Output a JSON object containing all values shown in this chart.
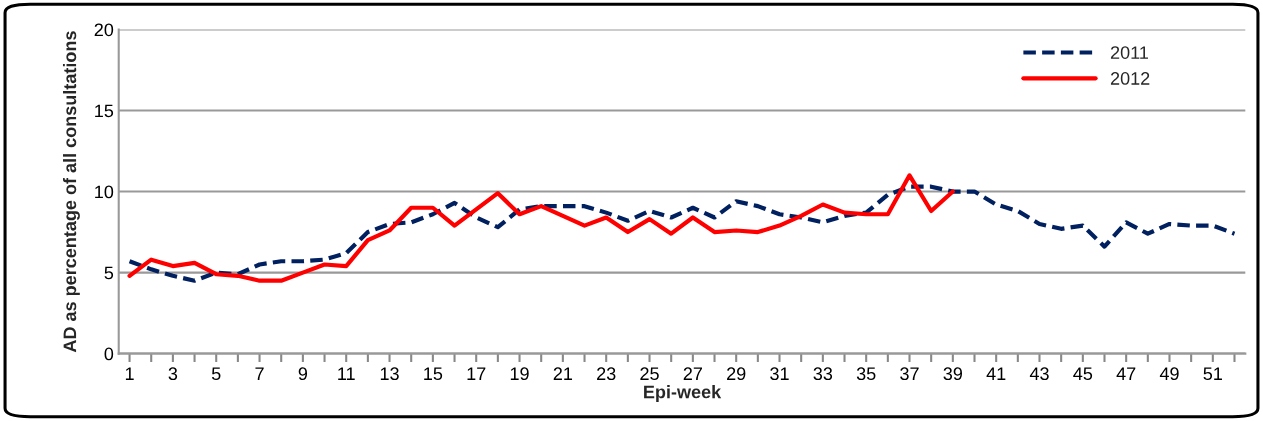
{
  "chart_data": {
    "type": "line",
    "xlabel": "Epi-week",
    "ylabel": "AD as percentage of all consultations",
    "x": [
      1,
      2,
      3,
      4,
      5,
      6,
      7,
      8,
      9,
      10,
      11,
      12,
      13,
      14,
      15,
      16,
      17,
      18,
      19,
      20,
      21,
      22,
      23,
      24,
      25,
      26,
      27,
      28,
      29,
      30,
      31,
      32,
      33,
      34,
      35,
      36,
      37,
      38,
      39,
      40,
      41,
      42,
      43,
      44,
      45,
      46,
      47,
      48,
      49,
      50,
      51,
      52
    ],
    "series": [
      {
        "name": "2011",
        "color": "#002060",
        "line_style": "dashed",
        "values": [
          5.7,
          5.2,
          4.8,
          4.5,
          5.0,
          4.9,
          5.5,
          5.7,
          5.7,
          5.8,
          6.2,
          7.5,
          8.0,
          8.1,
          8.6,
          9.3,
          8.4,
          7.8,
          8.9,
          9.1,
          9.1,
          9.1,
          8.7,
          8.2,
          8.8,
          8.4,
          9.0,
          8.4,
          9.4,
          9.1,
          8.6,
          8.4,
          8.1,
          8.5,
          8.7,
          9.8,
          10.3,
          10.3,
          10.0,
          10.0,
          9.2,
          8.8,
          8.0,
          7.7,
          7.9,
          6.6,
          8.1,
          7.4,
          8.0,
          7.9,
          7.9,
          7.4
        ]
      },
      {
        "name": "2012",
        "color": "#ff0000",
        "line_style": "solid",
        "values": [
          4.8,
          5.8,
          5.4,
          5.6,
          4.9,
          4.8,
          4.5,
          4.5,
          5.0,
          5.5,
          5.4,
          7.0,
          7.6,
          9.0,
          9.0,
          7.9,
          8.9,
          9.9,
          8.6,
          9.1,
          8.5,
          7.9,
          8.4,
          7.5,
          8.3,
          7.4,
          8.4,
          7.5,
          7.6,
          7.5,
          7.9,
          8.5,
          9.2,
          8.7,
          8.6,
          8.6,
          11.0,
          8.8,
          10.0,
          null,
          null,
          null,
          null,
          null,
          null,
          null,
          null,
          null,
          null,
          null,
          null,
          null
        ]
      }
    ],
    "xlim": [
      0.5,
      52.5
    ],
    "xticks": [
      1,
      {
        "value": 2,
        "label": null
      },
      3,
      {
        "value": 4,
        "label": null
      },
      5,
      {
        "value": 6,
        "label": null
      },
      7,
      {
        "value": 8,
        "label": null
      },
      9,
      {
        "value": 10,
        "label": null
      },
      11,
      {
        "value": 12,
        "label": null
      },
      13,
      {
        "value": 14,
        "label": null
      },
      15,
      {
        "value": 16,
        "label": null
      },
      17,
      {
        "value": 18,
        "label": null
      },
      19,
      {
        "value": 20,
        "label": null
      },
      21,
      {
        "value": 22,
        "label": null
      },
      23,
      {
        "value": 24,
        "label": null
      },
      25,
      {
        "value": 26,
        "label": null
      },
      27,
      {
        "value": 28,
        "label": null
      },
      29,
      {
        "value": 30,
        "label": null
      },
      31,
      {
        "value": 32,
        "label": null
      },
      33,
      {
        "value": 34,
        "label": null
      },
      35,
      {
        "value": 36,
        "label": null
      },
      37,
      {
        "value": 38,
        "label": null
      },
      39,
      {
        "value": 40,
        "label": null
      },
      41,
      {
        "value": 42,
        "label": null
      },
      43,
      {
        "value": 44,
        "label": null
      },
      45,
      {
        "value": 46,
        "label": null
      },
      47,
      {
        "value": 48,
        "label": null
      },
      49,
      {
        "value": 50,
        "label": null
      },
      51,
      {
        "value": 52,
        "label": null
      }
    ],
    "ylim": [
      0,
      20
    ],
    "yticks": [
      0,
      5,
      10,
      15,
      20
    ],
    "grid": "y",
    "legend": "top right",
    "marker": "none"
  }
}
